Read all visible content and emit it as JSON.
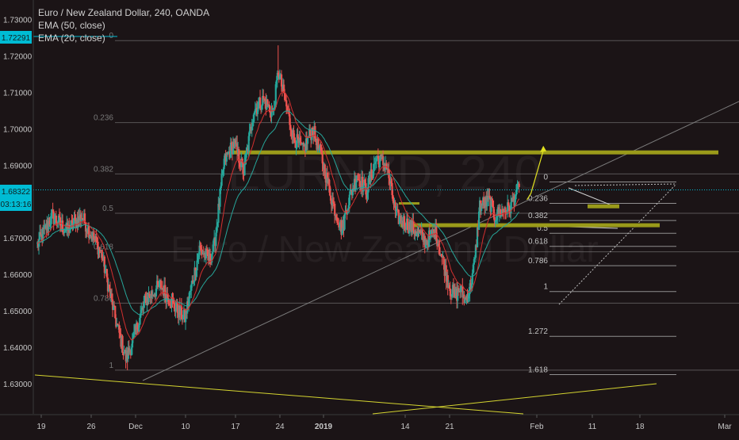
{
  "header": {
    "title": "Euro / New Zealand Dollar, 240, OANDA",
    "indicator_1": "EMA (50, close)",
    "indicator_2": "EMA (20, close)"
  },
  "watermark": {
    "symbol": "EURNZD, 240",
    "name": "Euro / New Zealand Dollar"
  },
  "price_labels": {
    "high_marker": "1.72291",
    "current_price": "1.68322",
    "countdown": "03:13:16"
  },
  "colors": {
    "background": "#1b1416",
    "up_candle": "#26a69a",
    "down_candle": "#ef5350",
    "ema50": "#26a69a",
    "ema20": "#d32f2f",
    "support_resistance": "#9a9a1a",
    "fib_line": "#8a8a8a",
    "projection": "#e0e020",
    "price_tag": "#00bcd4"
  },
  "chart_data": {
    "type": "candlestick",
    "symbol": "EUR/NZD",
    "timeframe": "240",
    "ylim": [
      1.6265,
      1.7323
    ],
    "y_ticks": [
      {
        "value": 1.73,
        "label": "1.73000"
      },
      {
        "value": 1.72,
        "label": "1.72000"
      },
      {
        "value": 1.71,
        "label": "1.71000"
      },
      {
        "value": 1.7,
        "label": "1.70000"
      },
      {
        "value": 1.69,
        "label": "1.69000"
      },
      {
        "value": 1.68,
        "label": "1.68000"
      },
      {
        "value": 1.67,
        "label": "1.67000"
      },
      {
        "value": 1.66,
        "label": "1.66000"
      },
      {
        "value": 1.65,
        "label": "1.65000"
      },
      {
        "value": 1.64,
        "label": "1.64000"
      },
      {
        "value": 1.63,
        "label": "1.63000"
      }
    ],
    "x_ticks": [
      "19",
      "26",
      "Dec",
      "10",
      "17",
      "24",
      "2019",
      "14",
      "21",
      "Feb",
      "11",
      "18",
      "Mar"
    ],
    "approx_path": [
      {
        "d": 0,
        "p": 1.668
      },
      {
        "d": 3,
        "p": 1.676
      },
      {
        "d": 6,
        "p": 1.672
      },
      {
        "d": 9,
        "p": 1.676
      },
      {
        "d": 13,
        "p": 1.666
      },
      {
        "d": 16,
        "p": 1.647
      },
      {
        "d": 18,
        "p": 1.637
      },
      {
        "d": 19,
        "p": 1.64
      },
      {
        "d": 22,
        "p": 1.653
      },
      {
        "d": 25,
        "p": 1.657
      },
      {
        "d": 28,
        "p": 1.651
      },
      {
        "d": 30,
        "p": 1.648
      },
      {
        "d": 33,
        "p": 1.667
      },
      {
        "d": 35,
        "p": 1.664
      },
      {
        "d": 36,
        "p": 1.668
      },
      {
        "d": 38,
        "p": 1.691
      },
      {
        "d": 40,
        "p": 1.696
      },
      {
        "d": 42,
        "p": 1.688
      },
      {
        "d": 44,
        "p": 1.705
      },
      {
        "d": 46,
        "p": 1.708
      },
      {
        "d": 48,
        "p": 1.704
      },
      {
        "d": 49,
        "p": 1.716
      },
      {
        "d": 50,
        "p": 1.71
      },
      {
        "d": 52,
        "p": 1.698
      },
      {
        "d": 54,
        "p": 1.694
      },
      {
        "d": 56,
        "p": 1.7
      },
      {
        "d": 58,
        "p": 1.691
      },
      {
        "d": 60,
        "p": 1.68
      },
      {
        "d": 62,
        "p": 1.672
      },
      {
        "d": 63,
        "p": 1.679
      },
      {
        "d": 65,
        "p": 1.687
      },
      {
        "d": 67,
        "p": 1.683
      },
      {
        "d": 69,
        "p": 1.692
      },
      {
        "d": 71,
        "p": 1.69
      },
      {
        "d": 73,
        "p": 1.676
      },
      {
        "d": 75,
        "p": 1.674
      },
      {
        "d": 77,
        "p": 1.672
      },
      {
        "d": 79,
        "p": 1.669
      },
      {
        "d": 81,
        "p": 1.672
      },
      {
        "d": 82,
        "p": 1.666
      },
      {
        "d": 84,
        "p": 1.656
      },
      {
        "d": 85,
        "p": 1.654
      },
      {
        "d": 86,
        "p": 1.656
      },
      {
        "d": 87,
        "p": 1.653
      },
      {
        "d": 88,
        "p": 1.656
      },
      {
        "d": 89,
        "p": 1.664
      },
      {
        "d": 90,
        "p": 1.679
      },
      {
        "d": 92,
        "p": 1.68
      },
      {
        "d": 93,
        "p": 1.676
      },
      {
        "d": 94,
        "p": 1.677
      },
      {
        "d": 96,
        "p": 1.678
      },
      {
        "d": 97,
        "p": 1.681
      },
      {
        "d": 98,
        "p": 1.684
      }
    ],
    "horizontal_levels": [
      1.6935,
      1.6787,
      1.6735
    ],
    "fib_retracement_left": [
      {
        "label": "0",
        "value": 1.7242
      },
      {
        "label": "0.236",
        "value": 1.7017
      },
      {
        "label": "0.382",
        "value": 1.6876
      },
      {
        "label": "0.5",
        "value": 1.6768
      },
      {
        "label": "0.618",
        "value": 1.6662
      },
      {
        "label": "0.786",
        "value": 1.6521
      },
      {
        "label": "1",
        "value": 1.6337
      }
    ],
    "fib_extension_right": [
      {
        "label": "0",
        "value": 1.6854
      },
      {
        "label": "0.236",
        "value": 1.6795
      },
      {
        "label": "0.382",
        "value": 1.6748
      },
      {
        "label": "0.5",
        "value": 1.6713
      },
      {
        "label": "0.618",
        "value": 1.6677
      },
      {
        "label": "0.786",
        "value": 1.6624
      },
      {
        "label": "1",
        "value": 1.6553
      },
      {
        "label": "1.272",
        "value": 1.643
      },
      {
        "label": "1.618",
        "value": 1.6325
      }
    ],
    "projection": [
      {
        "d": 98,
        "p": 1.6805
      },
      {
        "d": 101,
        "p": 1.694
      }
    ],
    "grid": false,
    "legend": "top-left"
  }
}
